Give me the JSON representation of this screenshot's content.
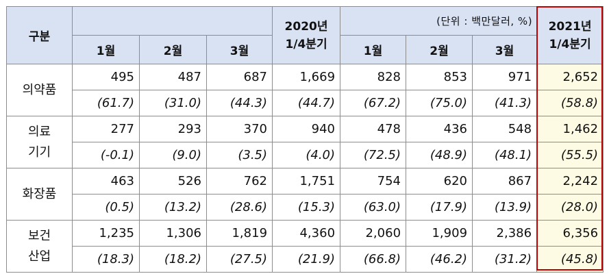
{
  "header": {
    "category": "구분",
    "year2020_quarter": [
      "2020년",
      "1/4분기"
    ],
    "unit": "(단위 : 백만달러, %)",
    "year2021_quarter": [
      "2021년",
      "1/4분기"
    ],
    "months_2020": [
      "1월",
      "2월",
      "3월"
    ],
    "months_2021": [
      "1월",
      "2월",
      "3월"
    ]
  },
  "rows": [
    {
      "category": [
        "의약품"
      ],
      "values": [
        "495",
        "487",
        "687",
        "1,669",
        "828",
        "853",
        "971",
        "2,652"
      ],
      "rates": [
        "(61.7)",
        "(31.0)",
        "(44.3)",
        "(44.7)",
        "(67.2)",
        "(75.0)",
        "(41.3)",
        "(58.8)"
      ]
    },
    {
      "category": [
        "의료",
        "기기"
      ],
      "values": [
        "277",
        "293",
        "370",
        "940",
        "478",
        "436",
        "548",
        "1,462"
      ],
      "rates": [
        "(-0.1)",
        "(9.0)",
        "(3.5)",
        "(4.0)",
        "(72.5)",
        "(48.9)",
        "(48.1)",
        "(55.5)"
      ]
    },
    {
      "category": [
        "화장품"
      ],
      "values": [
        "463",
        "526",
        "762",
        "1,751",
        "754",
        "620",
        "867",
        "2,242"
      ],
      "rates": [
        "(0.5)",
        "(13.2)",
        "(28.6)",
        "(15.3)",
        "(63.0)",
        "(17.9)",
        "(13.9)",
        "(28.0)"
      ]
    },
    {
      "category": [
        "보건",
        "산업"
      ],
      "values": [
        "1,235",
        "1,306",
        "1,819",
        "4,360",
        "2,060",
        "1,909",
        "2,386",
        "6,356"
      ],
      "rates": [
        "(18.3)",
        "(18.2)",
        "(27.5)",
        "(21.9)",
        "(66.8)",
        "(46.2)",
        "(31.2)",
        "(45.8)"
      ]
    }
  ],
  "highlight_color": "#c00000",
  "header_bg": "#d9e2f3",
  "highlight_bg": "#fdfbe3"
}
